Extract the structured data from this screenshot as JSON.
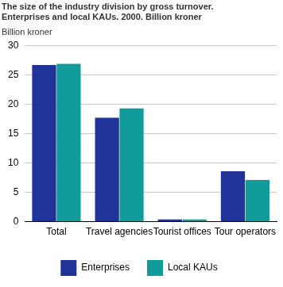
{
  "chart_data": {
    "type": "bar",
    "title": [
      "The size of the industry division by gross turnover.",
      "Enterprises and local KAUs. 2000. Billion kroner"
    ],
    "y_label": "Billion kroner",
    "categories": [
      "Total",
      "Travel agencies",
      "Tourist offices",
      "Tour operators"
    ],
    "series": [
      {
        "name": "Enterprises",
        "color": "#1f3399",
        "values": [
          26.7,
          17.7,
          0.4,
          8.6
        ]
      },
      {
        "name": "Local KAUs",
        "color": "#119b9b",
        "values": [
          26.9,
          19.3,
          0.4,
          7.1
        ]
      }
    ],
    "ylim": [
      0,
      30
    ],
    "yticks": [
      0,
      5,
      10,
      15,
      20,
      25,
      30
    ],
    "grid": true,
    "legend": "bottom"
  }
}
